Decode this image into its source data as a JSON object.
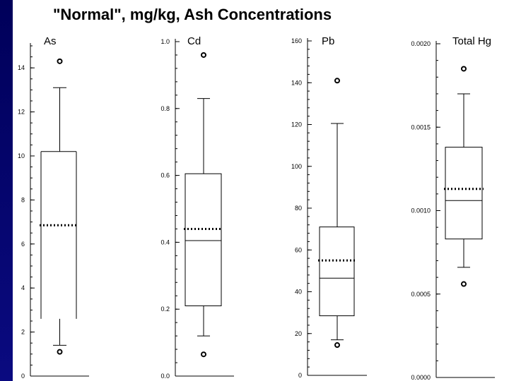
{
  "title": "\"Normal\", mg/kg, Ash Concentrations",
  "chart_data": [
    {
      "type": "boxplot",
      "title": "As",
      "ylim": [
        0,
        15
      ],
      "ticks": [
        0,
        2,
        4,
        6,
        8,
        10,
        12,
        14
      ],
      "tick_labels": [
        "0",
        "2",
        "4",
        "6",
        "8",
        "10",
        "12",
        "14"
      ],
      "minor_step": 0.5,
      "whisker_low": 2.6,
      "q1": 2.6,
      "median": 2.6,
      "q3": 10.2,
      "mean": 6.85,
      "whisker_high": 13.1,
      "lower_whisker_end": 1.1,
      "outliers": [
        1.1,
        14.3
      ]
    },
    {
      "type": "boxplot",
      "title": "Cd",
      "ylim": [
        0,
        1.0
      ],
      "ticks": [
        0.0,
        0.2,
        0.4,
        0.6,
        0.8,
        1.0
      ],
      "tick_labels": [
        "0.0",
        "0.2",
        "0.4",
        "0.6",
        "0.8",
        "1.0"
      ],
      "minor_step": 0.04,
      "whisker_low": 0.12,
      "q1": 0.21,
      "median": 0.405,
      "q3": 0.605,
      "mean": 0.44,
      "whisker_high": 0.83,
      "outliers": [
        0.065,
        0.96
      ]
    },
    {
      "type": "boxplot",
      "title": "Pb",
      "ylim": [
        0,
        160
      ],
      "ticks": [
        0,
        20,
        40,
        60,
        80,
        100,
        120,
        140,
        160
      ],
      "tick_labels": [
        "0",
        "20",
        "40",
        "60",
        "80",
        "100",
        "120",
        "140",
        "160"
      ],
      "minor_step": 4,
      "whisker_low": 17,
      "q1": 28.5,
      "median": 46.5,
      "q3": 71,
      "mean": 55,
      "whisker_high": 120.5,
      "outliers": [
        14.5,
        141
      ]
    },
    {
      "type": "boxplot",
      "title": "Total Hg",
      "ylim": [
        0,
        0.002
      ],
      "ticks": [
        0,
        0.0005,
        0.001,
        0.0015,
        0.002
      ],
      "tick_labels": [
        "0.0000",
        "0.0005",
        "0.0010",
        "0.0015",
        "0.0020"
      ],
      "minor_step": 0.0001,
      "whisker_low": 0.00066,
      "q1": 0.00083,
      "median": 0.00106,
      "q3": 0.00138,
      "mean": 0.00113,
      "whisker_high": 0.0017,
      "outliers": [
        0.00056,
        0.00185
      ]
    }
  ]
}
